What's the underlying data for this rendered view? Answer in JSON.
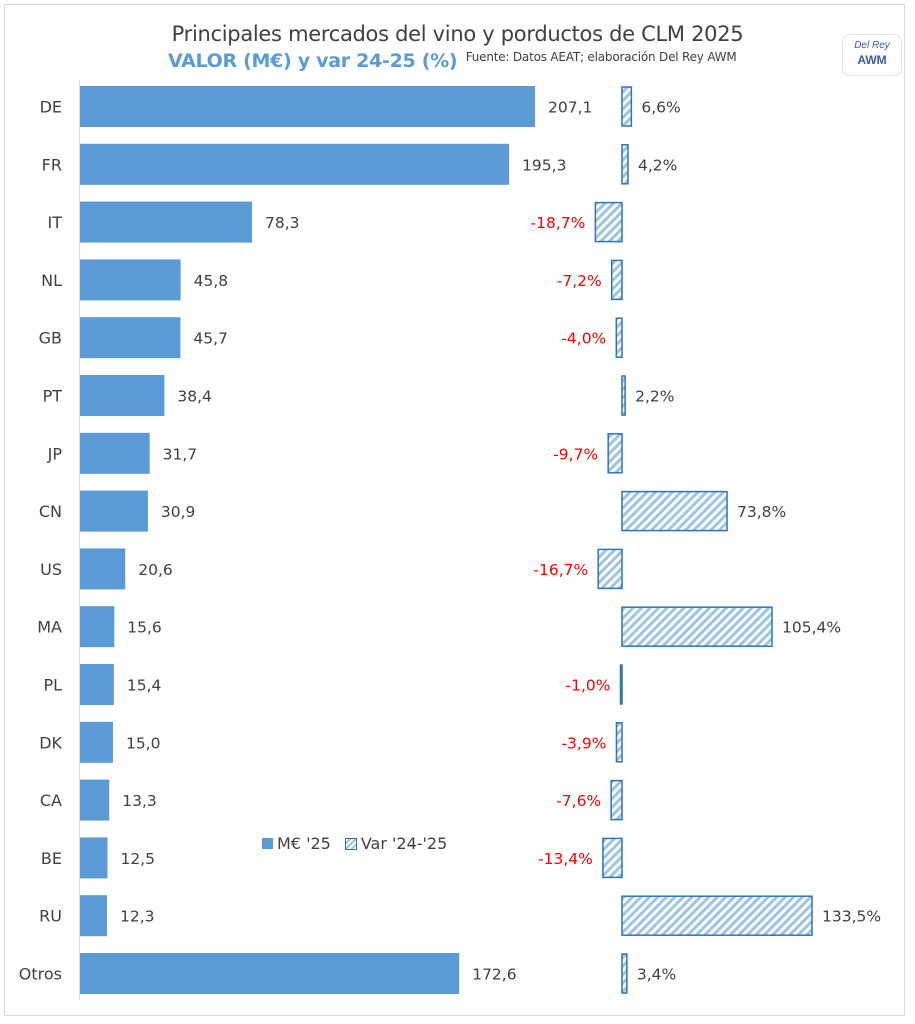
{
  "header": {
    "title": "Principales mercados del vino y porductos de CLM 2025",
    "subtitle": "VALOR (M€) y var 24-25 (%)",
    "source": "Fuente: Datos AEAT; elaboración Del Rey AWM"
  },
  "logo": {
    "line1": "Del Rey",
    "line2": "AWM"
  },
  "legend": {
    "series1": "M€ '25",
    "series2": "Var '24-'25"
  },
  "colors": {
    "value_bar": "#5b9bd5",
    "var_border": "#2e75b6",
    "var_hatch": "#9dc3e6",
    "negative_label": "#ff0000",
    "label": "#404040"
  },
  "chart_data": {
    "type": "bar",
    "orientation": "horizontal",
    "title": "Principales mercados del vino y porductos de CLM 2025",
    "subtitle": "VALOR (M€) y var 24-25 (%)",
    "categories": [
      "DE",
      "FR",
      "IT",
      "NL",
      "GB",
      "PT",
      "JP",
      "CN",
      "US",
      "MA",
      "PL",
      "DK",
      "CA",
      "BE",
      "RU",
      "Otros"
    ],
    "series": [
      {
        "name": "M€ '25",
        "values": [
          207.1,
          195.3,
          78.3,
          45.8,
          45.7,
          38.4,
          31.7,
          30.9,
          20.6,
          15.6,
          15.4,
          15.0,
          13.3,
          12.5,
          12.3,
          172.6
        ],
        "labels": [
          "207,1",
          "195,3",
          "78,3",
          "45,8",
          "45,7",
          "38,4",
          "31,7",
          "30,9",
          "20,6",
          "15,6",
          "15,4",
          "15,0",
          "13,3",
          "12,5",
          "12,3",
          "172,6"
        ]
      },
      {
        "name": "Var '24-'25",
        "unit": "%",
        "values": [
          6.6,
          4.2,
          -18.7,
          -7.2,
          -4.0,
          2.2,
          -9.7,
          73.8,
          -16.7,
          105.4,
          -1.0,
          -3.9,
          -7.6,
          -13.4,
          133.5,
          3.4
        ],
        "labels": [
          "6,6%",
          "4,2%",
          "-18,7%",
          "-7,2%",
          "-4,0%",
          "2,2%",
          "-9,7%",
          "73,8%",
          "-16,7%",
          "105,4%",
          "-1,0%",
          "-3,9%",
          "-7,6%",
          "-13,4%",
          "133,5%",
          "3,4%"
        ]
      }
    ],
    "legend_position": "bottom-center (inside plot)",
    "grid": false,
    "xlabel": "",
    "ylabel": ""
  }
}
